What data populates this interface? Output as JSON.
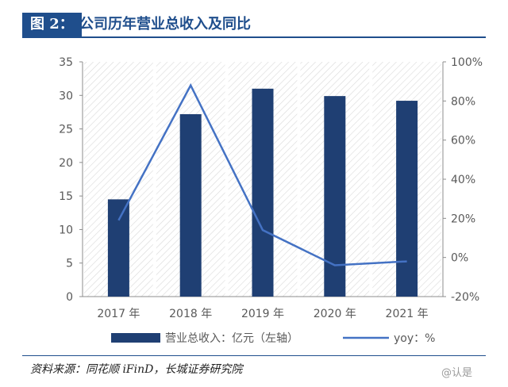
{
  "header": {
    "fig_label": "图 2：",
    "title": "公司历年营业总收入及同比"
  },
  "source": "资料来源：同花顺 iFinD，长城证券研究院",
  "watermark": "@认是",
  "colors": {
    "bar": "#1f3f73",
    "line": "#4472c4",
    "hatch": "#d9d9d9",
    "axis": "#8c8c8c",
    "text": "#595959"
  },
  "chart_data": {
    "type": "bar",
    "categories": [
      "2017 年",
      "2018 年",
      "2019 年",
      "2020 年",
      "2021 年"
    ],
    "series": [
      {
        "name": "营业总收入：亿元（左轴）",
        "type": "bar",
        "axis": "left",
        "values": [
          14.5,
          27.2,
          31.0,
          29.9,
          29.2
        ]
      },
      {
        "name": "yoy：%",
        "type": "line",
        "axis": "right",
        "values": [
          19,
          88,
          14,
          -4,
          -2
        ]
      }
    ],
    "y_left": {
      "lim": [
        0,
        35
      ],
      "ticks": [
        "0",
        "5",
        "10",
        "15",
        "20",
        "25",
        "30",
        "35"
      ]
    },
    "y_right": {
      "lim": [
        -20,
        100
      ],
      "ticks": [
        "-20%",
        "0%",
        "20%",
        "40%",
        "60%",
        "80%",
        "100%"
      ]
    },
    "legend_position": "bottom",
    "background": "diagonal hatch"
  }
}
